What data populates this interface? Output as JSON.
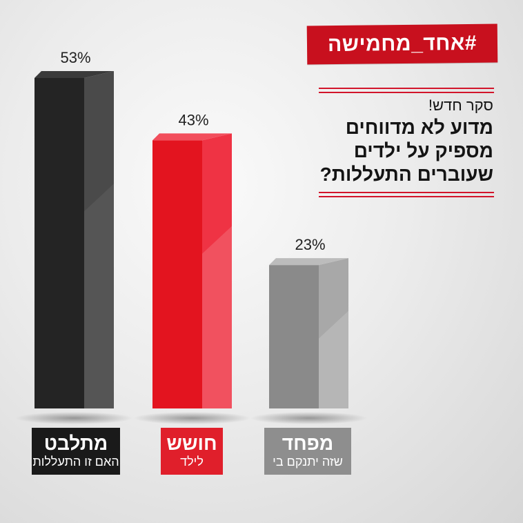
{
  "hashtag": "#אחד_מחמישה",
  "survey_label": "סקר חדש!",
  "question_lines": [
    "מדוע לא מדווחים",
    "מספיק על ילדים",
    "שעוברים התעללות?"
  ],
  "chart_data": {
    "type": "bar",
    "categories": [
      "מתלבט",
      "חושש",
      "מפחד"
    ],
    "category_sublabels": [
      "האם זו התעללות",
      "לילד",
      "שזה יתנקם בי"
    ],
    "values": [
      53,
      43,
      23
    ],
    "value_labels": [
      "53%",
      "43%",
      "23%"
    ],
    "bar_colors": [
      "#333333",
      "#e8202f",
      "#9a9a9a"
    ],
    "ylim": [
      0,
      53
    ]
  },
  "colors": {
    "accent_red": "#c8101e",
    "black_box": "#1a1a1a",
    "red_box": "#e01f2b",
    "gray_box": "#8e8e8e"
  }
}
